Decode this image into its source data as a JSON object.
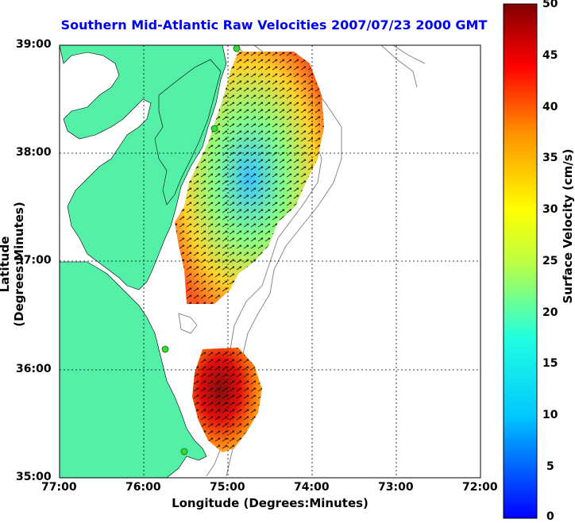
{
  "title": "Southern Mid-Atlantic Raw Velocities 2007/07/23 2000 GMT",
  "xlabel": "Longitude (Degrees:Minutes)",
  "ylabel": "Latitude (Degrees:Minutes)",
  "colorbar": {
    "label": "Surface Velocity (cm/s)",
    "ticks": [
      "50",
      "45",
      "40",
      "35",
      "30",
      "25",
      "20",
      "15",
      "10",
      "5",
      "0"
    ],
    "min": 0,
    "max": 50
  },
  "x_ticks": [
    "77:00",
    "76:00",
    "75:00",
    "74:00",
    "73:00",
    "72:00"
  ],
  "y_ticks": [
    "39:00",
    "38:00",
    "37:00",
    "36:00",
    "35:00"
  ],
  "colors": {
    "land": "#55f0a8",
    "water": "#ffffff",
    "title": "#0000ee",
    "contour": "#888888",
    "station": "#33dd33"
  }
}
